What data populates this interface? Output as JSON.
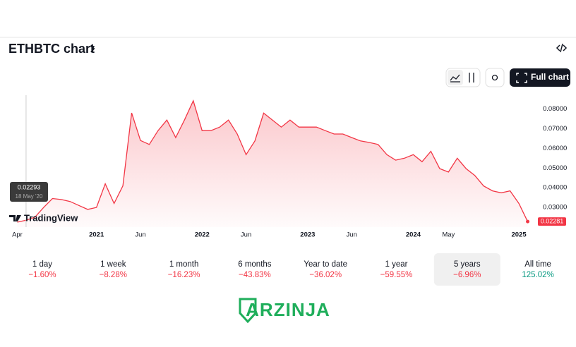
{
  "header": {
    "title": "ETHBTC chart"
  },
  "toolbar": {
    "full_chart": "Full chart"
  },
  "chart_data": {
    "type": "area",
    "x": [
      "2020-04",
      "2020-05",
      "2020-06",
      "2020-07",
      "2020-08",
      "2020-09",
      "2020-10",
      "2020-11",
      "2020-12",
      "2021-01",
      "2021-02",
      "2021-03",
      "2021-04",
      "2021-05",
      "2021-06",
      "2021-07",
      "2021-08",
      "2021-09",
      "2021-10",
      "2021-11",
      "2021-12",
      "2022-01",
      "2022-02",
      "2022-03",
      "2022-04",
      "2022-05",
      "2022-06",
      "2022-07",
      "2022-08",
      "2022-09",
      "2022-10",
      "2022-11",
      "2022-12",
      "2023-01",
      "2023-02",
      "2023-03",
      "2023-04",
      "2023-05",
      "2023-06",
      "2023-07",
      "2023-08",
      "2023-09",
      "2023-10",
      "2023-11",
      "2023-12",
      "2024-01",
      "2024-02",
      "2024-03",
      "2024-04",
      "2024-05",
      "2024-06",
      "2024-07",
      "2024-08",
      "2024-09",
      "2024-10",
      "2024-11",
      "2024-12",
      "2025-01",
      "2025-02"
    ],
    "series": [
      {
        "name": "ETHBTC",
        "color": "#f23645",
        "values": [
          0.0225,
          0.0235,
          0.025,
          0.03,
          0.0345,
          0.034,
          0.033,
          0.031,
          0.029,
          0.03,
          0.042,
          0.032,
          0.041,
          0.078,
          0.064,
          0.062,
          0.069,
          0.0744,
          0.0655,
          0.0744,
          0.0842,
          0.069,
          0.069,
          0.0708,
          0.0744,
          0.0673,
          0.0568,
          0.0638,
          0.0779,
          0.0744,
          0.0708,
          0.0744,
          0.0708,
          0.0708,
          0.0708,
          0.069,
          0.0673,
          0.0673,
          0.0655,
          0.0638,
          0.063,
          0.062,
          0.0568,
          0.054,
          0.055,
          0.0568,
          0.0532,
          0.0585,
          0.0497,
          0.048,
          0.055,
          0.0497,
          0.0462,
          0.0409,
          0.0384,
          0.0374,
          0.0384,
          0.032,
          0.02281
        ]
      }
    ],
    "xlim": [
      "2020-03",
      "2025-03"
    ],
    "xticks": [
      {
        "value": "2020-04",
        "label": "Apr"
      },
      {
        "value": "2021-01",
        "label": "2021"
      },
      {
        "value": "2021-06",
        "label": "Jun"
      },
      {
        "value": "2022-01",
        "label": "2022"
      },
      {
        "value": "2022-06",
        "label": "Jun"
      },
      {
        "value": "2023-01",
        "label": "2023"
      },
      {
        "value": "2023-06",
        "label": "Jun"
      },
      {
        "value": "2024-01",
        "label": "2024"
      },
      {
        "value": "2024-05",
        "label": "May"
      },
      {
        "value": "2025-01",
        "label": "2025"
      }
    ],
    "ylim": [
      0.02,
      0.087
    ],
    "yticks": [
      {
        "value": 0.03,
        "label": "0.03000"
      },
      {
        "value": 0.04,
        "label": "0.04000"
      },
      {
        "value": 0.05,
        "label": "0.05000"
      },
      {
        "value": 0.06,
        "label": "0.06000"
      },
      {
        "value": 0.07,
        "label": "0.07000"
      },
      {
        "value": 0.08,
        "label": "0.08000"
      }
    ],
    "crosshair": {
      "x": "2020-05",
      "value": 0.02293,
      "date": "18 May '20"
    },
    "brand": "TradingView"
  },
  "periods": [
    {
      "label": "1 day",
      "change": "−1.60%"
    },
    {
      "label": "1 week",
      "change": "−8.28%"
    },
    {
      "label": "1 month",
      "change": "−16.23%"
    },
    {
      "label": "6 months",
      "change": "−43.83%"
    },
    {
      "label": "Year to date",
      "change": "−36.02%"
    },
    {
      "label": "1 year",
      "change": "−59.55%"
    },
    {
      "label": "5 years",
      "change": "−6.96%",
      "selected": true
    },
    {
      "label": "All time",
      "change": "125.02%"
    }
  ],
  "watermark": "ARZINJA"
}
